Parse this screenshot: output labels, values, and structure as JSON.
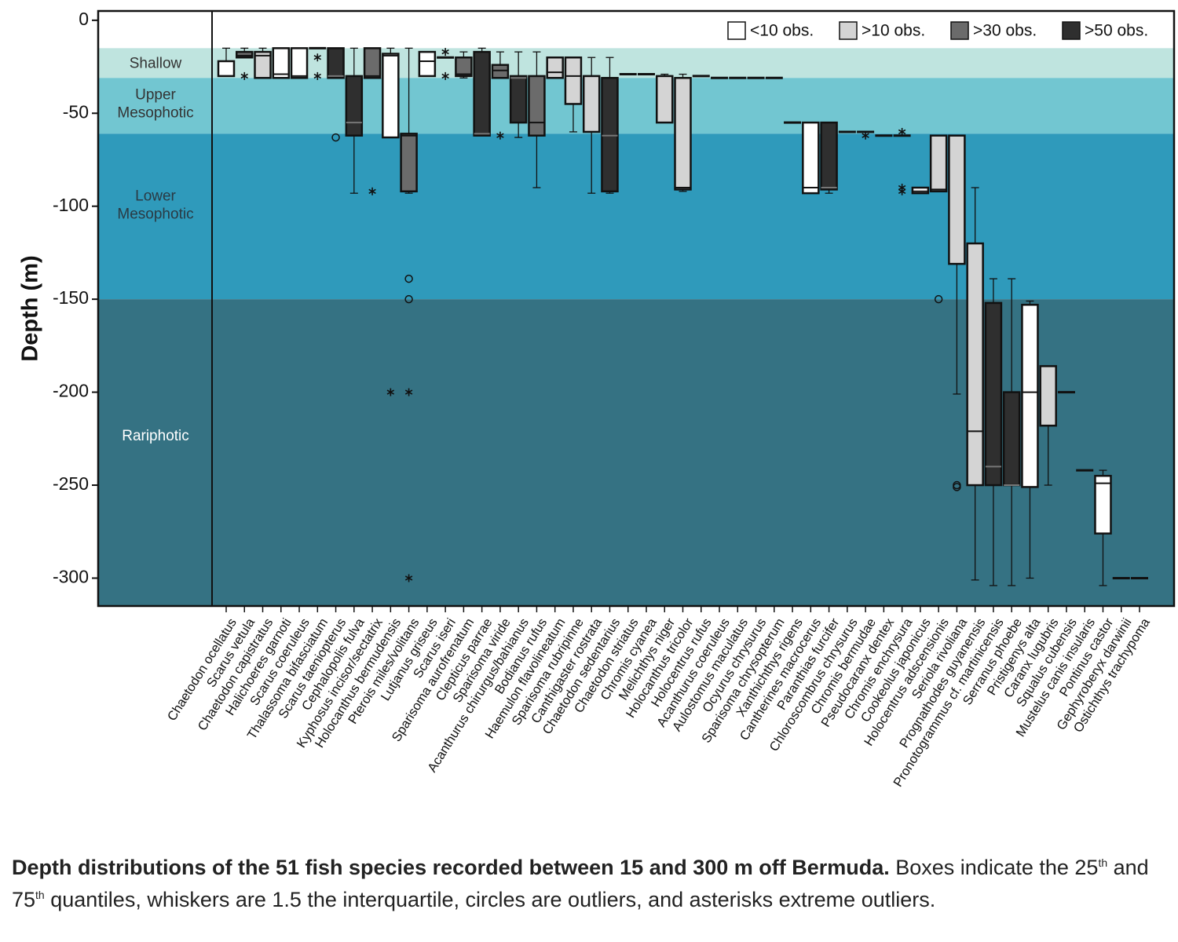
{
  "chart_data": {
    "type": "box",
    "ylabel": "Depth (m)",
    "ylim": [
      -315,
      5
    ],
    "yticks": [
      0,
      -50,
      -100,
      -150,
      -200,
      -250,
      -300
    ],
    "zones": [
      {
        "label": [
          "Shallow"
        ],
        "top": -15,
        "color": "#bfe4df",
        "text_color": "#333333"
      },
      {
        "label": [
          "Upper",
          "Mesophotic"
        ],
        "top": -31,
        "color": "#72c6d1",
        "text_color": "#333333"
      },
      {
        "label": [
          "Lower",
          "Mesophotic"
        ],
        "top": -61,
        "color": "#2f9abb",
        "text_color": "#2a3a44"
      },
      {
        "label": [
          "Rariphotic"
        ],
        "top": -150,
        "color": "#357283",
        "text_color": "#ffffff"
      }
    ],
    "legend": [
      {
        "name": "<10 obs.",
        "color": "#ffffff"
      },
      {
        "name": ">10 obs.",
        "color": "#d4d4d4"
      },
      {
        "name": ">30 obs.",
        "color": "#6b6b6b"
      },
      {
        "name": ">50 obs.",
        "color": "#2f2f2f"
      }
    ],
    "categories": [
      "Chaetodon ocellatus",
      "Scarus vetula",
      "Chaetodon capistratus",
      "Halichoeres garnoti",
      "Scarus coeruleus",
      "Thalassoma bifasciatum",
      "Scarus taeniopterus",
      "Cephalopolis fulva",
      "Kyphosus incisor/sectatrix",
      "Holocanthus bermudensis",
      "Pterois miles/volitans",
      "Lutjanus griseus",
      "Scarus iseri",
      "Sparisoma aurofrenatum",
      "Clepticus parrae",
      "Sparisoma viride",
      "Acanthurus chirurgus/bahianus",
      "Bodianus rufus",
      "Haemulon flavolineatum",
      "Sparisoma rubripinne",
      "Canthigaster rostrata",
      "Chaetodon sedentarius",
      "Chaetodon striatus",
      "Chromis cyanea",
      "Melichthys niger",
      "Holocanthus tricolor",
      "Holocentrus rufus",
      "Acanthurus coeruleus",
      "Aulostomus maculatus",
      "Ocyurus chrysurus",
      "Sparisoma chrysopterum",
      "Xanthichthys rigens",
      "Cantherines macrocerus",
      "Paranthias furcifer",
      "Chloroscombrus chrysurus",
      "Chromis bermudae",
      "Pseudocaranx dentex",
      "Chromis enchrysura",
      "Cookeolus japonicus",
      "Holocentrus adscensionis",
      "Seriola rivoliana",
      "Prognathodes guyanensis",
      "Pronotogrammus cf. martinicensis",
      "Serranus phoebe",
      "Pristigenys alta",
      "Caranx lugubris",
      "Squalus cubensis",
      "Mustelus canis insularis",
      "Pontinus castor",
      "Gephyroberyx darwinii",
      "Ostichthys trachypoma"
    ],
    "boxes": [
      {
        "min": -30,
        "q1": -30,
        "median": -30,
        "q3": -22,
        "max": -15,
        "group": 0
      },
      {
        "min": -20,
        "q1": -20,
        "median": -19,
        "q3": -17,
        "max": -15,
        "group": 2,
        "extremes": [
          -30
        ]
      },
      {
        "min": -31,
        "q1": -31,
        "median": -19,
        "q3": -17,
        "max": -15,
        "group": 1
      },
      {
        "min": -31,
        "q1": -31,
        "median": -29,
        "q3": -15,
        "max": -15,
        "group": 0
      },
      {
        "min": -31,
        "q1": -31,
        "median": -30,
        "q3": -15,
        "max": -15,
        "group": 0
      },
      {
        "value": -15,
        "extremes": [
          -20,
          -30
        ]
      },
      {
        "min": -31,
        "q1": -31,
        "median": -30,
        "q3": -15,
        "max": -15,
        "group": 3,
        "outliers": [
          -63
        ]
      },
      {
        "min": -93,
        "q1": -62,
        "median": -55,
        "q3": -30,
        "max": -15,
        "group": 3
      },
      {
        "min": -31,
        "q1": -31,
        "median": -30,
        "q3": -15,
        "max": -15,
        "group": 2,
        "extremes": [
          -92
        ]
      },
      {
        "min": -63,
        "q1": -63,
        "median": -19,
        "q3": -18,
        "max": -15,
        "group": 0,
        "extremes": [
          -200
        ]
      },
      {
        "min": -93,
        "q1": -92,
        "median": -62,
        "q3": -61,
        "max": -15,
        "group": 2,
        "outliers": [
          -139,
          -150
        ],
        "extremes": [
          -200,
          -300
        ]
      },
      {
        "min": -30,
        "q1": -30,
        "median": -22,
        "q3": -17,
        "max": -17,
        "group": 0
      },
      {
        "value": -20,
        "extremes": [
          -17,
          -30
        ]
      },
      {
        "min": -31,
        "q1": -30,
        "median": -29,
        "q3": -20,
        "max": -17,
        "group": 2
      },
      {
        "min": -62,
        "q1": -62,
        "median": -61,
        "q3": -17,
        "max": -15,
        "group": 3
      },
      {
        "min": -31,
        "q1": -31,
        "median": -27,
        "q3": -24,
        "max": -17,
        "group": 2,
        "extremes": [
          -62
        ]
      },
      {
        "min": -63,
        "q1": -55,
        "median": -31,
        "q3": -30,
        "max": -17,
        "group": 3
      },
      {
        "min": -90,
        "q1": -62,
        "median": -55,
        "q3": -30,
        "max": -17,
        "group": 2
      },
      {
        "min": -31,
        "q1": -31,
        "median": -28,
        "q3": -20,
        "max": -20,
        "group": 1
      },
      {
        "min": -60,
        "q1": -45,
        "median": -30,
        "q3": -20,
        "max": -20,
        "group": 1
      },
      {
        "min": -93,
        "q1": -60,
        "median": -30,
        "q3": -30,
        "max": -20,
        "group": 1
      },
      {
        "min": -93,
        "q1": -92,
        "median": -62,
        "q3": -31,
        "max": -20,
        "group": 3
      },
      {
        "value": -29
      },
      {
        "value": -29
      },
      {
        "min": -55,
        "q1": -55,
        "median": -30,
        "q3": -30,
        "max": -29,
        "group": 1
      },
      {
        "min": -92,
        "q1": -91,
        "median": -90,
        "q3": -31,
        "max": -29,
        "group": 1
      },
      {
        "value": -30
      },
      {
        "value": -31
      },
      {
        "value": -31
      },
      {
        "value": -31
      },
      {
        "value": -31
      },
      {
        "value": -55
      },
      {
        "min": -93,
        "q1": -93,
        "median": -90,
        "q3": -55,
        "max": -55,
        "group": 0
      },
      {
        "min": -93,
        "q1": -91,
        "median": -90,
        "q3": -55,
        "max": -55,
        "group": 3
      },
      {
        "value": -60
      },
      {
        "value": -60,
        "extremes": [
          -62
        ]
      },
      {
        "value": -62
      },
      {
        "value": -62,
        "extremes": [
          -60,
          -90,
          -92
        ]
      },
      {
        "min": -93,
        "q1": -93,
        "median": -92,
        "q3": -90,
        "max": -90,
        "group": 0
      },
      {
        "min": -92,
        "q1": -92,
        "median": -91,
        "q3": -62,
        "max": -62,
        "group": 1,
        "outliers": [
          -150
        ]
      },
      {
        "min": -201,
        "q1": -131,
        "median": -62,
        "q3": -62,
        "max": -62,
        "group": 1,
        "outliers": [
          -250,
          -251
        ]
      },
      {
        "min": -301,
        "q1": -250,
        "median": -221,
        "q3": -120,
        "max": -90,
        "group": 1
      },
      {
        "min": -304,
        "q1": -250,
        "median": -240,
        "q3": -152,
        "max": -139,
        "group": 3
      },
      {
        "min": -304,
        "q1": -250,
        "median": -250,
        "q3": -200,
        "max": -139,
        "group": 3
      },
      {
        "min": -300,
        "q1": -251,
        "median": -200,
        "q3": -153,
        "max": -151,
        "group": 0
      },
      {
        "min": -250,
        "q1": -218,
        "median": -218,
        "q3": -186,
        "max": -186,
        "group": 1
      },
      {
        "value": -200
      },
      {
        "value": -242
      },
      {
        "min": -304,
        "q1": -276,
        "median": -249,
        "q3": -245,
        "max": -242,
        "group": 0
      },
      {
        "value": -300
      },
      {
        "value": -300
      }
    ]
  },
  "caption": {
    "bold": "Depth distributions of the 51 fish species recorded between 15 and 300 m off Bermuda.",
    "parts": [
      " Boxes indicate the 25",
      "th",
      " and 75",
      "th",
      " quantiles, whiskers are 1.5 the interquartile, circles are outliers, and asterisks extreme outliers."
    ]
  }
}
